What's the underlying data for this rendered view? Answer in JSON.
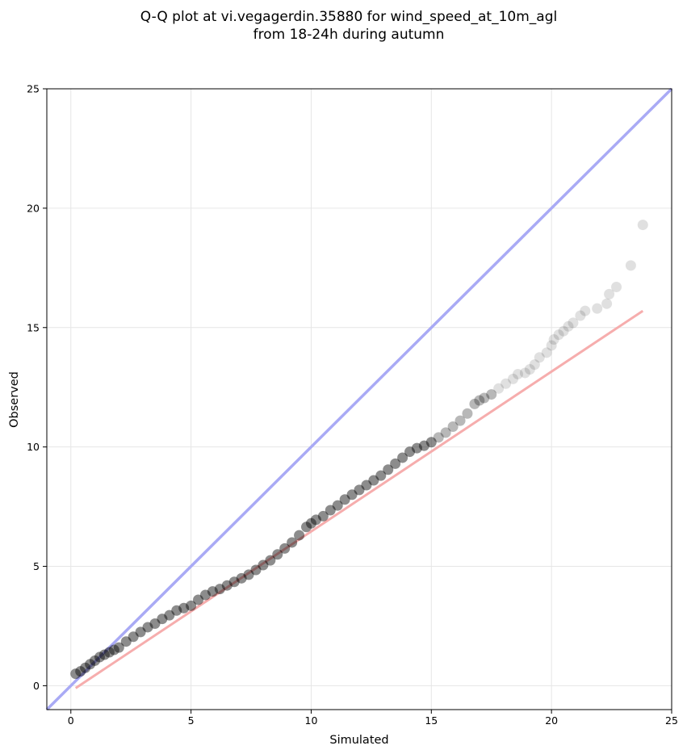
{
  "chart_data": {
    "type": "scatter",
    "title_lines": [
      "Q-Q plot at vi.vegagerdin.35880 for wind_speed_at_10m_agl",
      "from 18-24h during autumn"
    ],
    "xlabel": "Simulated",
    "ylabel": "Observed",
    "xlim": [
      -1,
      25
    ],
    "ylim": [
      -1,
      25
    ],
    "xticks": [
      0,
      5,
      10,
      15,
      20,
      25
    ],
    "yticks": [
      0,
      5,
      10,
      15,
      20,
      25
    ],
    "grid": true,
    "identity_line": {
      "x": [
        -1,
        25
      ],
      "y": [
        -1,
        25
      ],
      "color": "#a9aaf5"
    },
    "fit_line": {
      "x": [
        0.2,
        23.8
      ],
      "y": [
        -0.1,
        15.7
      ],
      "color": "#f5a9a9"
    },
    "series": [
      {
        "marker_color": "#000000",
        "x": [
          0.2,
          0.4,
          0.6,
          0.8,
          1.0,
          1.2,
          1.4,
          1.6,
          1.8,
          2.0,
          2.3,
          2.6,
          2.9,
          3.2,
          3.5,
          3.8,
          4.1,
          4.4,
          4.7,
          5.0,
          5.3,
          5.6,
          5.9,
          6.2,
          6.5,
          6.8,
          7.1,
          7.4,
          7.7,
          8.0,
          8.3,
          8.6,
          8.9,
          9.2,
          9.5,
          9.8,
          10.0,
          10.2,
          10.5,
          10.8,
          11.1,
          11.4,
          11.7,
          12.0,
          12.3,
          12.6,
          12.9,
          13.2,
          13.5,
          13.8,
          14.1,
          14.4,
          14.7,
          15.0,
          15.3,
          15.6,
          15.9,
          16.2,
          16.5,
          16.8,
          17.0,
          17.2,
          17.5,
          17.8,
          18.1,
          18.4,
          18.6,
          18.9,
          19.1,
          19.3,
          19.5,
          19.8,
          20.0,
          20.1,
          20.3,
          20.5,
          20.7,
          20.9,
          21.2,
          21.4,
          21.9,
          22.3,
          22.4,
          22.7,
          23.3,
          23.8
        ],
        "y": [
          0.5,
          0.6,
          0.75,
          0.9,
          1.05,
          1.2,
          1.3,
          1.4,
          1.5,
          1.6,
          1.85,
          2.05,
          2.25,
          2.45,
          2.6,
          2.8,
          2.95,
          3.15,
          3.25,
          3.35,
          3.6,
          3.8,
          3.95,
          4.05,
          4.2,
          4.35,
          4.5,
          4.65,
          4.85,
          5.05,
          5.25,
          5.5,
          5.75,
          6.0,
          6.3,
          6.65,
          6.8,
          6.95,
          7.1,
          7.35,
          7.55,
          7.8,
          8.0,
          8.2,
          8.4,
          8.6,
          8.8,
          9.05,
          9.3,
          9.55,
          9.8,
          9.95,
          10.05,
          10.2,
          10.4,
          10.6,
          10.85,
          11.1,
          11.4,
          11.8,
          11.95,
          12.05,
          12.2,
          12.45,
          12.65,
          12.85,
          13.05,
          13.1,
          13.25,
          13.45,
          13.75,
          13.95,
          14.25,
          14.5,
          14.7,
          14.85,
          15.05,
          15.2,
          15.5,
          15.7,
          15.8,
          16.0,
          16.4,
          16.7,
          17.6,
          19.3
        ]
      }
    ]
  }
}
